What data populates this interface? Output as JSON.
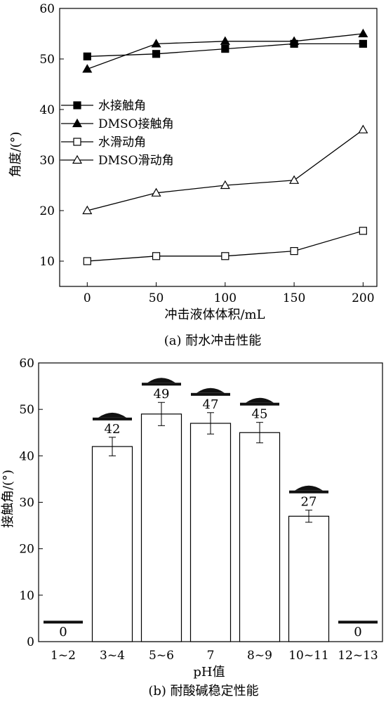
{
  "chart_data": [
    {
      "type": "line",
      "caption": "(a) 耐水冲击性能",
      "xlabel": "冲击液体体积/mL",
      "ylabel": "角度/(°)",
      "xlim": [
        -20,
        210
      ],
      "ylim": [
        5,
        60
      ],
      "xticks": [
        0,
        50,
        100,
        150,
        200
      ],
      "yticks": [
        10,
        20,
        30,
        40,
        50,
        60
      ],
      "legend_position": "center-left",
      "x": [
        0,
        50,
        100,
        150,
        200
      ],
      "series": [
        {
          "name": "水接触角",
          "marker": "filled-square",
          "values": [
            50.5,
            51,
            52,
            53,
            53
          ]
        },
        {
          "name": "DMSO接触角",
          "marker": "filled-triangle",
          "values": [
            48,
            53,
            53.5,
            53.5,
            55
          ]
        },
        {
          "name": "水滑动角",
          "marker": "open-square",
          "values": [
            10,
            11,
            11,
            12,
            16
          ]
        },
        {
          "name": "DMSO滑动角",
          "marker": "open-triangle",
          "values": [
            20,
            23.5,
            25,
            26,
            36
          ]
        }
      ]
    },
    {
      "type": "bar",
      "caption": "(b) 耐酸碱稳定性能",
      "xlabel": "pH值",
      "ylabel": "接触角/(°)",
      "ylim": [
        0,
        60
      ],
      "yticks": [
        0,
        10,
        20,
        30,
        40,
        50,
        60
      ],
      "categories": [
        "1~2",
        "3~4",
        "5~6",
        "7",
        "8~9",
        "10~11",
        "12~13"
      ],
      "values": [
        0,
        42,
        49,
        47,
        45,
        27,
        0
      ],
      "errors": [
        0,
        2,
        2.5,
        2.3,
        2.2,
        1.3,
        0
      ],
      "data_labels": [
        "0",
        "42",
        "49",
        "47",
        "45",
        "27",
        "0"
      ],
      "droplet_icons": [
        "flat-film",
        "droplet",
        "droplet",
        "droplet",
        "droplet",
        "droplet",
        "flat-film"
      ]
    }
  ]
}
